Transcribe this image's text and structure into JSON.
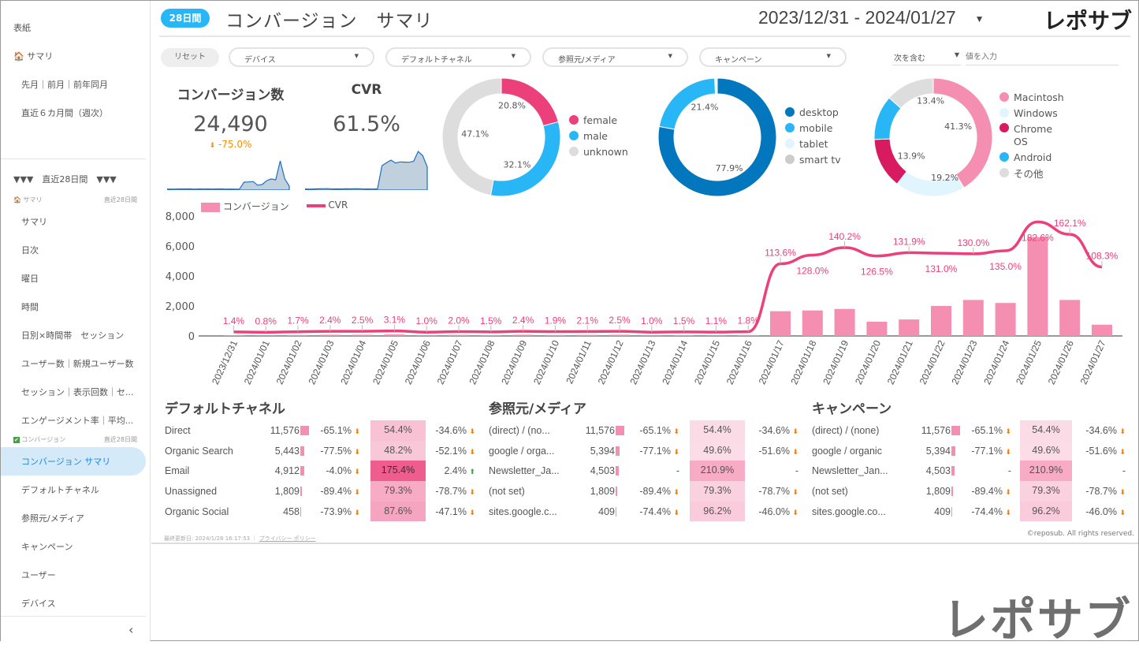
{
  "sidebar": {
    "top_items": [
      "表紙",
      "サマリ",
      "先月｜前月｜前年同月",
      "直近６カ月間（週次）"
    ],
    "period_header": "▼▼▼　直近28日間　▼▼▼",
    "section1": {
      "label": "サマリ",
      "period": "直近28日間",
      "items": [
        "サマリ",
        "日次",
        "曜日",
        "時間",
        "日別×時間帯　セッション",
        "ユーザー数｜新規ユーザー数",
        "セッション｜表示回数｜セ...",
        "エンゲージメント率｜平均..."
      ]
    },
    "section2": {
      "label": "コンバージョン",
      "period": "直近28日間",
      "items": [
        "コンバージョン サマリ",
        "デフォルトチャネル",
        "参照元/メディア",
        "キャンペーン",
        "ユーザー",
        "デバイス"
      ],
      "active": 0
    },
    "collapse": "‹"
  },
  "header": {
    "badge": "28日間",
    "title": "コンバージョン　サマリ",
    "date_range": "2023/12/31 - 2024/01/27",
    "logo": "レポサブ"
  },
  "filters": {
    "reset": "リセット",
    "dropdowns": [
      "デバイス",
      "デフォルトチャネル",
      "参照元/メディア",
      "キャンペーン"
    ],
    "match_mode": "次を含む",
    "value_placeholder": "値を入力"
  },
  "kpis": [
    {
      "label": "コンバージョン数",
      "value": "24,490",
      "delta": "-75.0%",
      "delta_dir": "down"
    },
    {
      "label": "CVR",
      "value": "61.5%"
    }
  ],
  "donuts": [
    {
      "slices": [
        {
          "name": "female",
          "value": 20.8,
          "label": "20.8%",
          "color": "#ec407a"
        },
        {
          "name": "male",
          "value": 32.1,
          "label": "32.1%",
          "color": "#29b6f6"
        },
        {
          "name": "unknown",
          "value": 47.1,
          "label": "47.1%",
          "color": "#dddddd"
        }
      ]
    },
    {
      "slices": [
        {
          "name": "desktop",
          "value": 77.9,
          "label": "77.9%",
          "color": "#0277bd"
        },
        {
          "name": "mobile",
          "value": 21.4,
          "label": "21.4%",
          "color": "#29b6f6"
        },
        {
          "name": "tablet",
          "value": 0.5,
          "label": "",
          "color": "#e1f5fe"
        },
        {
          "name": "smart tv",
          "value": 0.2,
          "label": "",
          "color": "#cccccc"
        }
      ]
    },
    {
      "slices": [
        {
          "name": "Macintosh",
          "value": 41.3,
          "label": "41.3%",
          "color": "#f48fb1"
        },
        {
          "name": "Windows",
          "value": 19.2,
          "label": "19.2%",
          "color": "#e1f5fe"
        },
        {
          "name": "Chrome OS",
          "value": 13.9,
          "label": "13.9%",
          "color": "#d81b60"
        },
        {
          "name": "Android",
          "value": 12.2,
          "label": "",
          "color": "#29b6f6"
        },
        {
          "name": "その他",
          "value": 13.4,
          "label": "13.4%",
          "color": "#dddddd"
        }
      ]
    }
  ],
  "chart_data": {
    "type": "bar+line",
    "categories": [
      "2023/12/31",
      "2024/01/01",
      "2024/01/02",
      "2024/01/03",
      "2024/01/04",
      "2024/01/05",
      "2024/01/06",
      "2024/01/07",
      "2024/01/08",
      "2024/01/09",
      "2024/01/10",
      "2024/01/11",
      "2024/01/12",
      "2024/01/13",
      "2024/01/14",
      "2024/01/15",
      "2024/01/16",
      "2024/01/17",
      "2024/01/18",
      "2024/01/19",
      "2024/01/20",
      "2024/01/21",
      "2024/01/22",
      "2024/01/23",
      "2024/01/24",
      "2024/01/25",
      "2024/01/26",
      "2024/01/27"
    ],
    "series": [
      {
        "name": "コンバージョン",
        "type": "bar",
        "color": "#f48fb1",
        "values": [
          50,
          30,
          60,
          80,
          80,
          100,
          40,
          70,
          50,
          80,
          60,
          70,
          80,
          40,
          50,
          40,
          60,
          1650,
          1700,
          1800,
          950,
          1100,
          2000,
          2400,
          2200,
          6600,
          2400,
          750
        ]
      },
      {
        "name": "CVR",
        "type": "line",
        "color": "#ec407a",
        "values": [
          1.4,
          0.8,
          1.7,
          2.4,
          2.5,
          3.1,
          1.0,
          2.0,
          1.5,
          2.4,
          1.9,
          2.1,
          2.5,
          1.0,
          1.5,
          1.1,
          1.8,
          113.6,
          128.0,
          140.2,
          126.5,
          131.9,
          131.0,
          130.0,
          135.0,
          182.6,
          162.1,
          108.3
        ],
        "labels": [
          "1.4%",
          "0.8%",
          "1.7%",
          "2.4%",
          "2.5%",
          "3.1%",
          "1.0%",
          "2.0%",
          "1.5%",
          "2.4%",
          "1.9%",
          "2.1%",
          "2.5%",
          "1.0%",
          "1.5%",
          "1.1%",
          "1.8%",
          "113.6%",
          "128.0%",
          "140.2%",
          "126.5%",
          "131.9%",
          "131.0%",
          "130.0%",
          "135.0%",
          "182.6%",
          "162.1%",
          "108.3%"
        ]
      }
    ],
    "yticks": [
      "0",
      "2,000",
      "4,000",
      "6,000",
      "8,000"
    ],
    "ylim": [
      0,
      8000
    ],
    "legend": "top-left"
  },
  "tables": [
    {
      "title": "デフォルトチャネル",
      "rows": [
        {
          "name": "Direct",
          "value": "11,576",
          "bar": 1.0,
          "d1": "-65.1%",
          "d1dir": "down",
          "cvr": "54.4%",
          "heat": 0.3,
          "d2": "-34.6%",
          "d2dir": "down"
        },
        {
          "name": "Organic Search",
          "value": "5,443",
          "bar": 0.47,
          "d1": "-77.5%",
          "d1dir": "down",
          "cvr": "48.2%",
          "heat": 0.25,
          "d2": "-52.1%",
          "d2dir": "down"
        },
        {
          "name": "Email",
          "value": "4,912",
          "bar": 0.42,
          "d1": "-4.0%",
          "d1dir": "down",
          "cvr": "175.4%",
          "heat": 1.0,
          "d2": "2.4%",
          "d2dir": "up"
        },
        {
          "name": "Unassigned",
          "value": "1,809",
          "bar": 0.16,
          "d1": "-89.4%",
          "d1dir": "down",
          "cvr": "79.3%",
          "heat": 0.45,
          "d2": "-78.7%",
          "d2dir": "down"
        },
        {
          "name": "Organic Social",
          "value": "458",
          "bar": 0.04,
          "d1": "-73.9%",
          "d1dir": "down",
          "cvr": "87.6%",
          "heat": 0.5,
          "d2": "-47.1%",
          "d2dir": "down"
        }
      ]
    },
    {
      "title": "参照元/メディア",
      "rows": [
        {
          "name": "(direct) / (no...",
          "value": "11,576",
          "bar": 1.0,
          "d1": "-65.1%",
          "d1dir": "down",
          "cvr": "54.4%",
          "heat": 0.12,
          "d2": "-34.6%",
          "d2dir": "down"
        },
        {
          "name": "google / orga...",
          "value": "5,394",
          "bar": 0.47,
          "d1": "-77.1%",
          "d1dir": "down",
          "cvr": "49.6%",
          "heat": 0.1,
          "d2": "-51.6%",
          "d2dir": "down"
        },
        {
          "name": "Newsletter_Ja...",
          "value": "4,503",
          "bar": 0.39,
          "d1": "-",
          "d1dir": "",
          "cvr": "210.9%",
          "heat": 0.45,
          "d2": "-",
          "d2dir": ""
        },
        {
          "name": "(not set)",
          "value": "1,809",
          "bar": 0.16,
          "d1": "-89.4%",
          "d1dir": "down",
          "cvr": "79.3%",
          "heat": 0.18,
          "d2": "-78.7%",
          "d2dir": "down"
        },
        {
          "name": "sites.google.c...",
          "value": "409",
          "bar": 0.04,
          "d1": "-74.4%",
          "d1dir": "down",
          "cvr": "96.2%",
          "heat": 0.22,
          "d2": "-46.0%",
          "d2dir": "down"
        }
      ]
    },
    {
      "title": "キャンペーン",
      "rows": [
        {
          "name": "(direct) / (none)",
          "value": "11,576",
          "bar": 1.0,
          "d1": "-65.1%",
          "d1dir": "down",
          "cvr": "54.4%",
          "heat": 0.12,
          "d2": "-34.6%",
          "d2dir": "down"
        },
        {
          "name": "google / organic",
          "value": "5,394",
          "bar": 0.47,
          "d1": "-77.1%",
          "d1dir": "down",
          "cvr": "49.6%",
          "heat": 0.1,
          "d2": "-51.6%",
          "d2dir": "down"
        },
        {
          "name": "Newsletter_Jan...",
          "value": "4,503",
          "bar": 0.39,
          "d1": "-",
          "d1dir": "",
          "cvr": "210.9%",
          "heat": 0.45,
          "d2": "-",
          "d2dir": ""
        },
        {
          "name": "(not set)",
          "value": "1,809",
          "bar": 0.16,
          "d1": "-89.4%",
          "d1dir": "down",
          "cvr": "79.3%",
          "heat": 0.18,
          "d2": "-78.7%",
          "d2dir": "down"
        },
        {
          "name": "sites.google.co...",
          "value": "409",
          "bar": 0.04,
          "d1": "-74.4%",
          "d1dir": "down",
          "cvr": "96.2%",
          "heat": 0.22,
          "d2": "-46.0%",
          "d2dir": "down"
        }
      ]
    }
  ],
  "footer": {
    "updated": "最終更新日: 2024/1/28 16:17:53",
    "privacy": "プライバシー ポリシー",
    "copyright": "©reposub. All rights reserved."
  },
  "watermark": "レポサブ"
}
